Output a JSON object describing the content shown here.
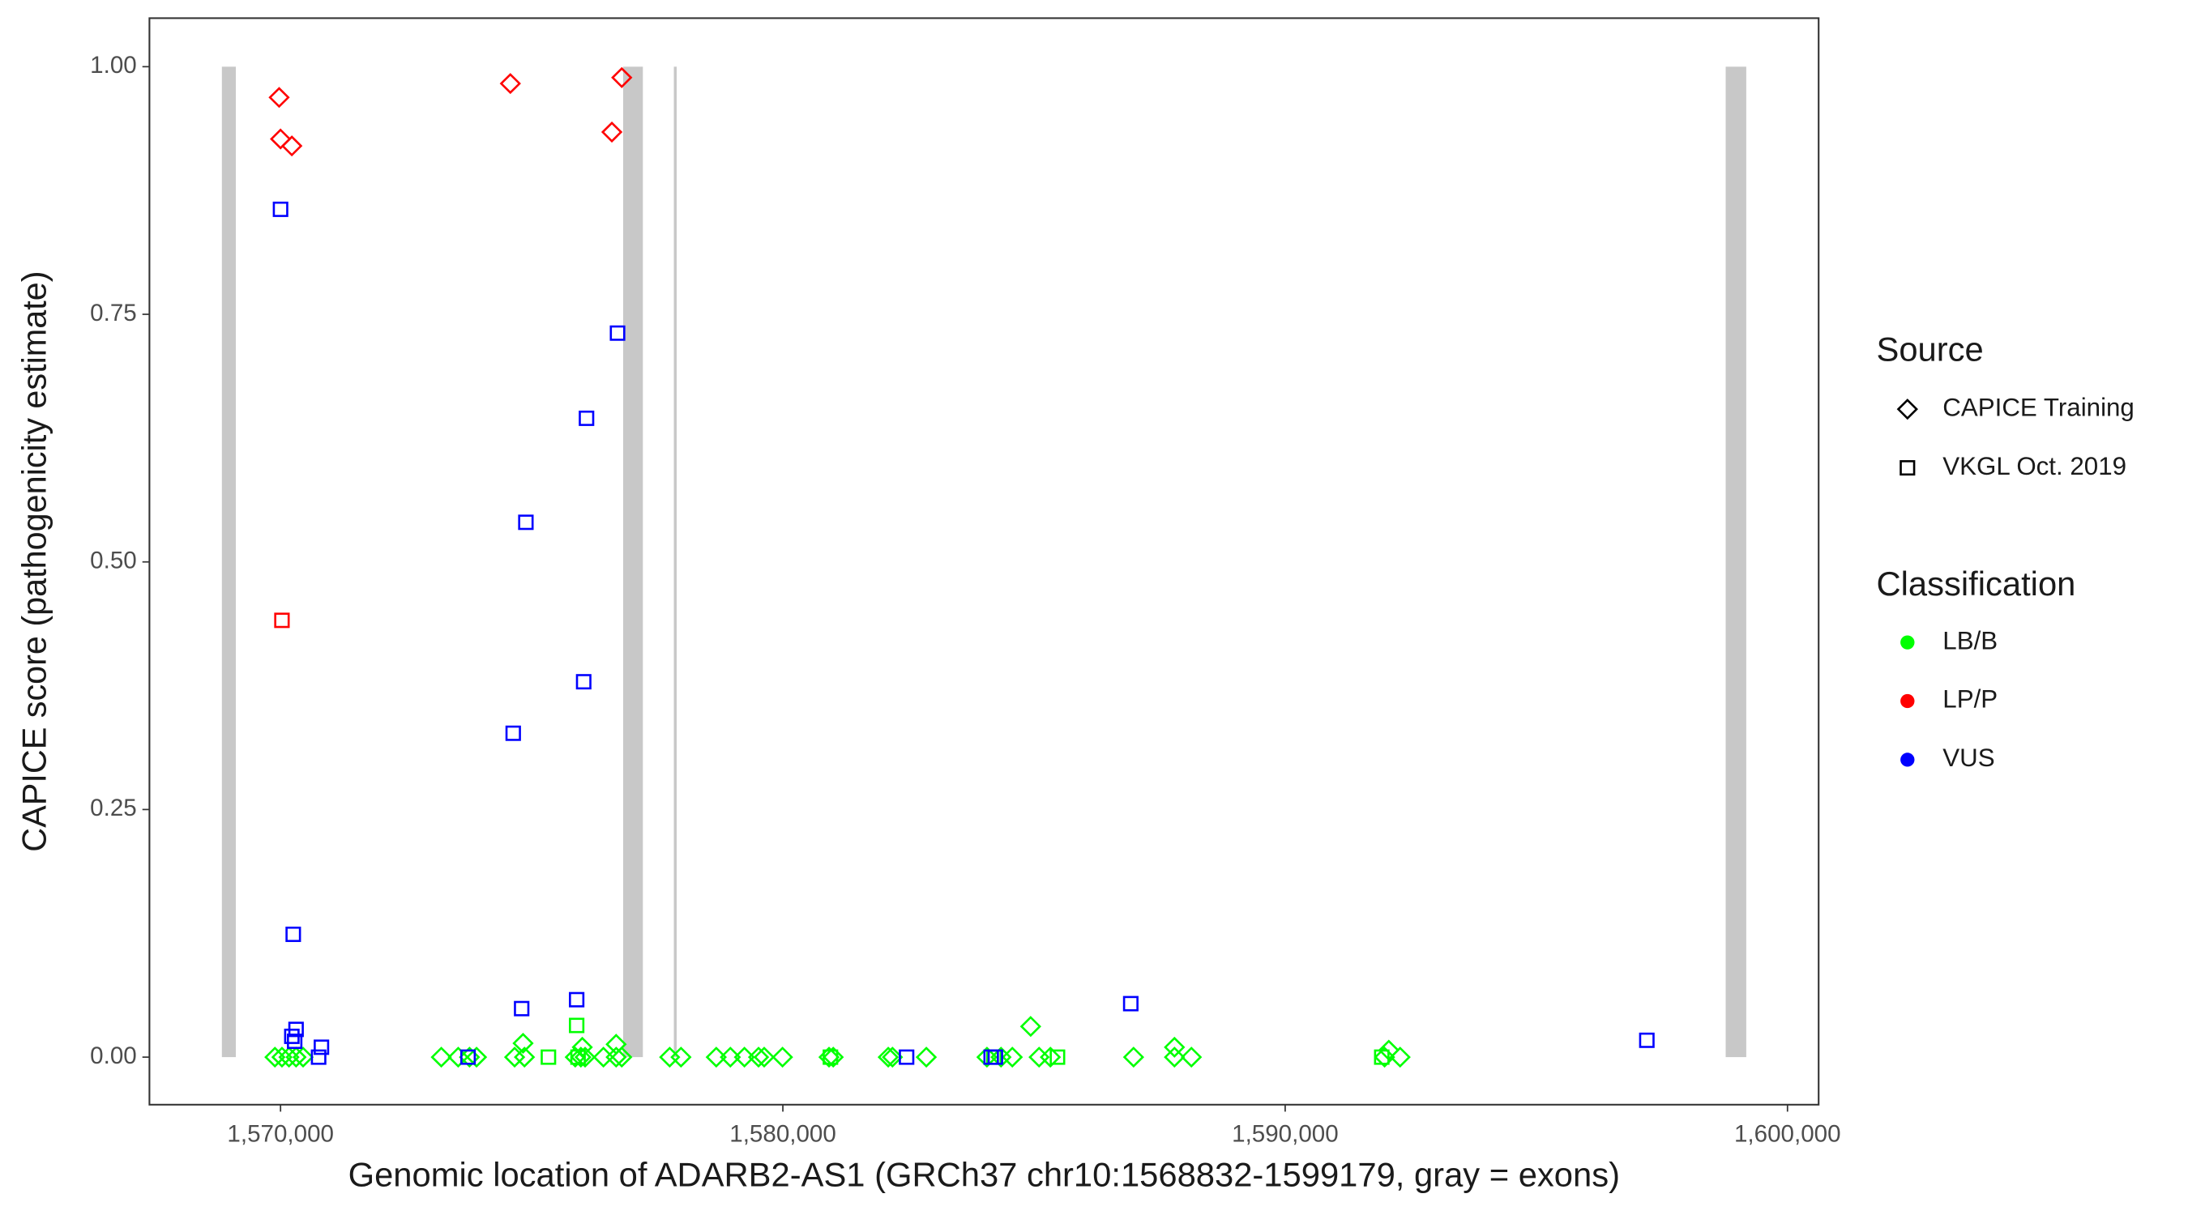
{
  "chart_data": {
    "type": "scatter",
    "x_label": "Genomic location of ADARB2-AS1 (GRCh37 chr10:1568832-1599179, gray = exons)",
    "y_label": "CAPICE score (pathogenicity estimate)",
    "xlim": [
      1567390,
      1600620
    ],
    "ylim": [
      -0.048,
      1.049
    ],
    "xticks": [
      {
        "value": 1570000,
        "label": "1,570,000"
      },
      {
        "value": 1580000,
        "label": "1,580,000"
      },
      {
        "value": 1590000,
        "label": "1,590,000"
      },
      {
        "value": 1600000,
        "label": "1,600,000"
      }
    ],
    "yticks": [
      {
        "value": 0,
        "label": "0.00"
      },
      0.25,
      {
        "value": 0.5,
        "label": "0.50"
      },
      0.75,
      {
        "value": 1,
        "label": "1.00"
      }
    ],
    "grid": false,
    "exon_color": "#c8c8c8",
    "exons": [
      [
        1568832,
        1569110
      ],
      [
        1576820,
        1577213
      ],
      [
        1577830,
        1577860
      ],
      [
        1598770,
        1599179
      ]
    ],
    "source_legend": {
      "title": "Source",
      "entries": [
        {
          "label": "CAPICE Training",
          "shape": "diamond"
        },
        {
          "label": "VKGL Oct. 2019",
          "shape": "square"
        }
      ]
    },
    "classification_title": "Classification",
    "series": [
      {
        "name": "LB/B",
        "color": "#00ff00",
        "diamond": {
          "x": [
            1569888,
            1570028,
            1570168,
            1570309,
            1570449,
            1573200,
            1573537,
            1573762,
            1573902,
            1574660,
            1574856,
            1575867,
            1575979,
            1576063,
            1576428,
            1576681,
            1576793,
            1577747,
            1577972,
            1578674,
            1578955,
            1579235,
            1579516,
            1579628,
            1579993,
            1580919,
            1581003,
            1582098,
            1582182,
            1582856,
            1584063,
            1584343,
            1584568,
            1585101,
            1585326,
            1586982,
            1587796,
            1588133,
            1591979,
            1592288,
            1574828,
            1576007,
            1576681,
            1584933,
            1587796,
            1592063
          ],
          "y": [
            0,
            0,
            0,
            0,
            0,
            0,
            0,
            0,
            0,
            0,
            0,
            0,
            0,
            0,
            0,
            0,
            0,
            0,
            0,
            0,
            0,
            0,
            0,
            0,
            0,
            0,
            0,
            0,
            0,
            0,
            0,
            0,
            0,
            0,
            0,
            0,
            0,
            0,
            0,
            0,
            0.014,
            0.01,
            0.013,
            0.031,
            0.01,
            0.007
          ]
        },
        "square": {
          "x": [
            1575895,
            1575333,
            1575923,
            1580947,
            1585467,
            1591923,
            1584203
          ],
          "y": [
            0.032,
            0,
            0,
            0,
            0,
            0,
            0
          ]
        }
      },
      {
        "name": "LP/P",
        "color": "#ff0000",
        "diamond": {
          "x": [
            1569972,
            1570000,
            1570225,
            1574575,
            1576596,
            1576793
          ],
          "y": [
            0.969,
            0.927,
            0.92,
            0.983,
            0.934,
            0.989
          ]
        },
        "square": {
          "x": [
            1570028
          ],
          "y": [
            0.441
          ]
        }
      },
      {
        "name": "VUS",
        "color": "#0000ff",
        "diamond": {
          "x": [],
          "y": []
        },
        "square": {
          "x": [
            1570000,
            1570253,
            1570225,
            1570309,
            1570281,
            1570758,
            1570814,
            1574632,
            1574884,
            1574800,
            1575895,
            1576035,
            1576091,
            1576709,
            1573733,
            1582463,
            1584147,
            1584231,
            1586926,
            1597200
          ],
          "y": [
            0.856,
            0.124,
            0.021,
            0.028,
            0.016,
            0,
            0.01,
            0.327,
            0.54,
            0.049,
            0.058,
            0.379,
            0.645,
            0.731,
            0,
            0,
            0,
            0,
            0.054,
            0.017
          ]
        }
      }
    ]
  }
}
